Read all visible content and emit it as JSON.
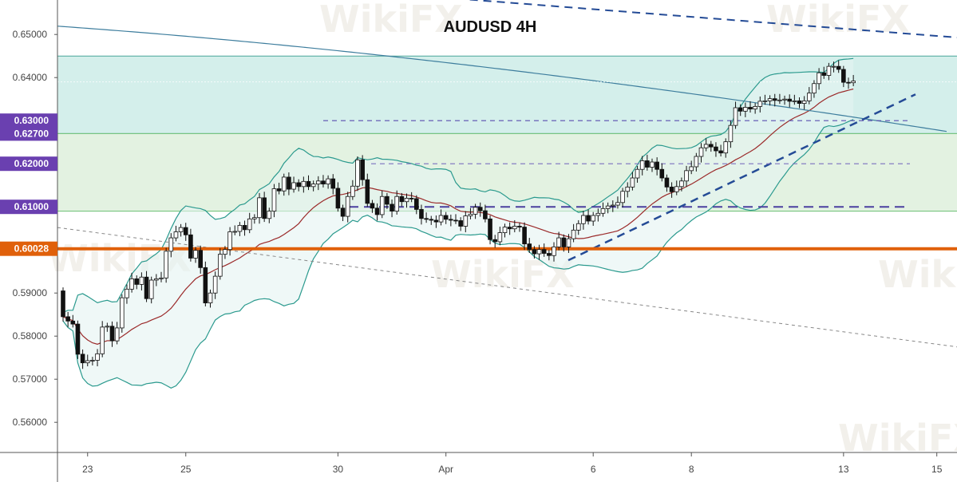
{
  "chart_data": {
    "type": "candlestick",
    "title": "AUDUSD 4H",
    "watermark": "WikiFX",
    "ylim": [
      0.553,
      0.658
    ],
    "y_ticks": [
      "0.65000",
      "0.64000",
      "0.59000",
      "0.58000",
      "0.57000",
      "0.56000"
    ],
    "x_ticks": [
      "23",
      "25",
      "30",
      "Apr",
      "6",
      "8",
      "13",
      "15"
    ],
    "x_tick_index": [
      5,
      25,
      56,
      78,
      108,
      128,
      159,
      178
    ],
    "level_tags": [
      {
        "label": "0.63000",
        "value": 0.63,
        "color": "#6a40b0"
      },
      {
        "label": "0.62700",
        "value": 0.627,
        "color": "#6a40b0"
      },
      {
        "label": "0.62000",
        "value": 0.62,
        "color": "#6a40b0"
      },
      {
        "label": "0.61000",
        "value": 0.61,
        "color": "#6a40b0"
      },
      {
        "label": "0.60028",
        "value": 0.60028,
        "color": "#e0600a"
      }
    ],
    "zones": [
      {
        "from": 0.627,
        "to": 0.645,
        "fill": "#cdece8",
        "border": "#4aa69a"
      },
      {
        "from": 0.609,
        "to": 0.627,
        "fill": "#def0dc",
        "border": "#6cbf74"
      }
    ],
    "support_line": {
      "value": 0.60028,
      "color": "#e0600a"
    },
    "open": [
      0.5905,
      0.5845,
      0.5835,
      0.5828,
      0.5758,
      0.5738,
      0.5743,
      0.5744,
      0.5759,
      0.5821,
      0.5823,
      0.5789,
      0.5819,
      0.5889,
      0.5909,
      0.5933,
      0.592,
      0.5937,
      0.5887,
      0.593,
      0.5933,
      0.5935,
      0.5997,
      0.6028,
      0.6042,
      0.6052,
      0.6035,
      0.5981,
      0.5999,
      0.5959,
      0.5877,
      0.59,
      0.5939,
      0.599,
      0.6001,
      0.6042,
      0.6043,
      0.6057,
      0.6047,
      0.6072,
      0.6075,
      0.6121,
      0.6073,
      0.609,
      0.6142,
      0.6137,
      0.6169,
      0.6141,
      0.6156,
      0.6147,
      0.6159,
      0.6147,
      0.6153,
      0.616,
      0.6153,
      0.6165,
      0.6143,
      0.6097,
      0.6078,
      0.6124,
      0.6148,
      0.6209,
      0.6163,
      0.6108,
      0.6097,
      0.6082,
      0.6124,
      0.6106,
      0.609,
      0.6124,
      0.6112,
      0.612,
      0.6119,
      0.6094,
      0.6073,
      0.6071,
      0.6069,
      0.6065,
      0.608,
      0.6071,
      0.6069,
      0.6068,
      0.6055,
      0.6079,
      0.6083,
      0.6099,
      0.6091,
      0.6072,
      0.6024,
      0.6019,
      0.604,
      0.6053,
      0.6049,
      0.6055,
      0.6053,
      0.6014,
      0.6001,
      0.5991,
      0.6001,
      0.5992,
      0.5987,
      0.6007,
      0.6028,
      0.6007,
      0.6026,
      0.6046,
      0.6061,
      0.608,
      0.6067,
      0.608,
      0.6085,
      0.6096,
      0.6102,
      0.6104,
      0.611,
      0.6136,
      0.6146,
      0.6167,
      0.6187,
      0.6207,
      0.6192,
      0.6204,
      0.6187,
      0.6167,
      0.6146,
      0.6135,
      0.6147,
      0.616,
      0.6184,
      0.6193,
      0.6217,
      0.6237,
      0.6245,
      0.6239,
      0.623,
      0.6225,
      0.6251,
      0.6289,
      0.633,
      0.6322,
      0.6331,
      0.6327,
      0.6333,
      0.6345,
      0.6346,
      0.6351,
      0.6347,
      0.6348,
      0.635,
      0.6345,
      0.6346,
      0.634,
      0.6346,
      0.6364,
      0.6386,
      0.6411,
      0.6405,
      0.6426,
      0.6426,
      0.6419,
      0.6389,
      0.6388
    ]
  }
}
